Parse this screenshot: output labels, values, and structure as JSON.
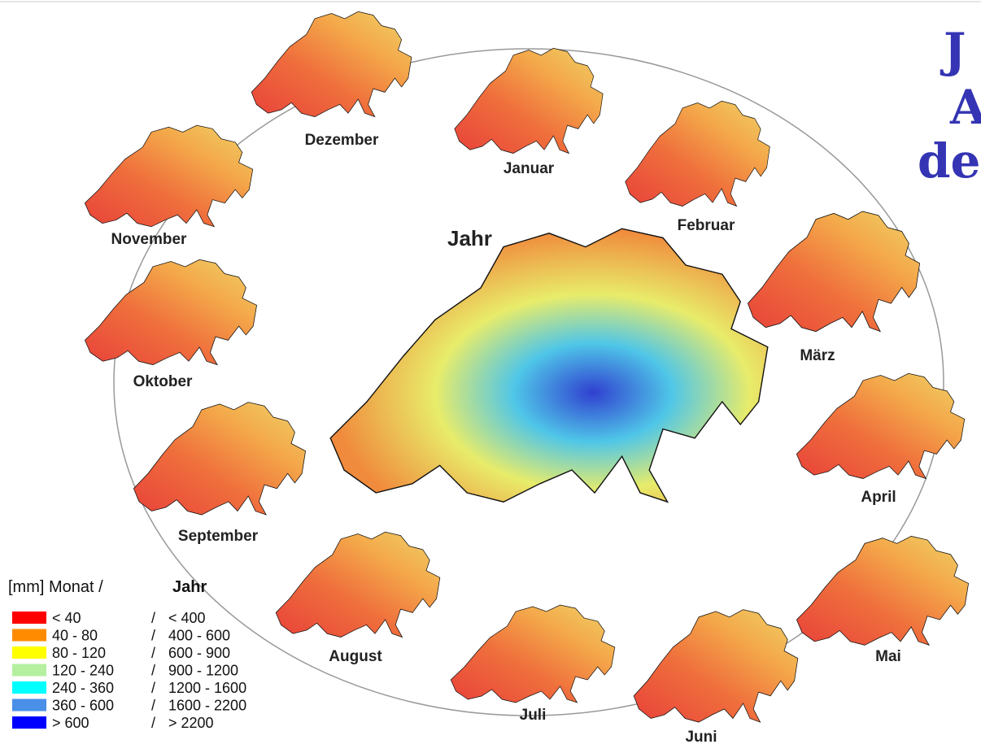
{
  "title_lines": [
    "J",
    "A",
    "de"
  ],
  "annual_map": {
    "label": "Jahr"
  },
  "monthly_maps": [
    {
      "label": "Dezember"
    },
    {
      "label": "Januar"
    },
    {
      "label": "Februar"
    },
    {
      "label": "März"
    },
    {
      "label": "April"
    },
    {
      "label": "Mai"
    },
    {
      "label": "Juni"
    },
    {
      "label": "Juli"
    },
    {
      "label": "August"
    },
    {
      "label": "September"
    },
    {
      "label": "Oktober"
    },
    {
      "label": "November"
    }
  ],
  "legend": {
    "title": "[mm] Monat /",
    "annual_heading": "Jahr",
    "rows": [
      {
        "color": "#ff0000",
        "month": "< 40",
        "separator": "/",
        "year": "< 400"
      },
      {
        "color": "#ff8c00",
        "month": "40 - 80",
        "separator": "/",
        "year": "400 - 600"
      },
      {
        "color": "#ffff00",
        "month": "80 - 120",
        "separator": "/",
        "year": "600 - 900"
      },
      {
        "color": "#b4f0a0",
        "month": "120 - 240",
        "separator": "/",
        "year": "900 - 1200"
      },
      {
        "color": "#00ffff",
        "month": "240 - 360",
        "separator": "/",
        "year": "1200 - 1600"
      },
      {
        "color": "#4a8fe8",
        "month": "360 - 600",
        "separator": "/",
        "year": "1600 - 2200"
      },
      {
        "color": "#0000ff",
        "month": "> 600",
        "separator": "/",
        "year": "> 2200"
      }
    ]
  }
}
